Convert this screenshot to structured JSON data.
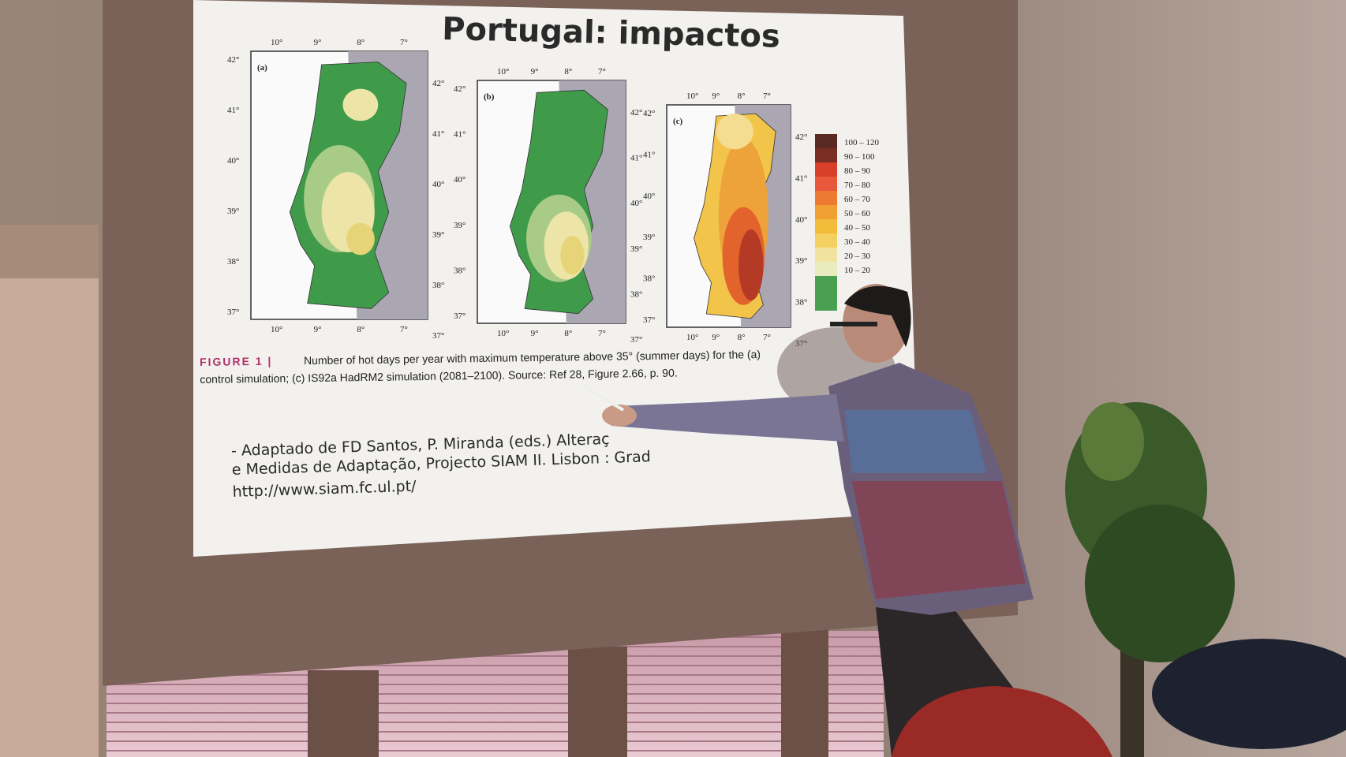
{
  "slide": {
    "title": "Portugal: impactos",
    "maps": [
      {
        "label": "(a)"
      },
      {
        "label": "(b)"
      },
      {
        "label": "(c)"
      }
    ],
    "lat_labels": [
      "42°",
      "41°",
      "40°",
      "39°",
      "38°",
      "37°"
    ],
    "lon_labels": [
      "10°",
      "9°",
      "8°",
      "7°"
    ],
    "legend": [
      "100 – 120",
      "90 – 100",
      "80 – 90",
      "70 – 80",
      "60 – 70",
      "50 – 60",
      "40 – 50",
      "30 – 40",
      "20 – 30",
      "10 – 20"
    ],
    "caption": {
      "label": "FIGURE 1 |",
      "line1": "Number of hot days per year with maximum temperature above 35° (summer days) for the (a)",
      "line2": "control simulation; (c) IS92a HadRM2 simulation (2081–2100). Source: Ref 28, Figure 2.66, p. 90."
    },
    "citation": [
      "- Adaptado de FD Santos, P. Miranda (eds.) Alteraç",
      "e Medidas de Adaptação, Projecto SIAM II. Lisbon : Grad",
      "http://www.siam.fc.ul.pt/"
    ]
  }
}
